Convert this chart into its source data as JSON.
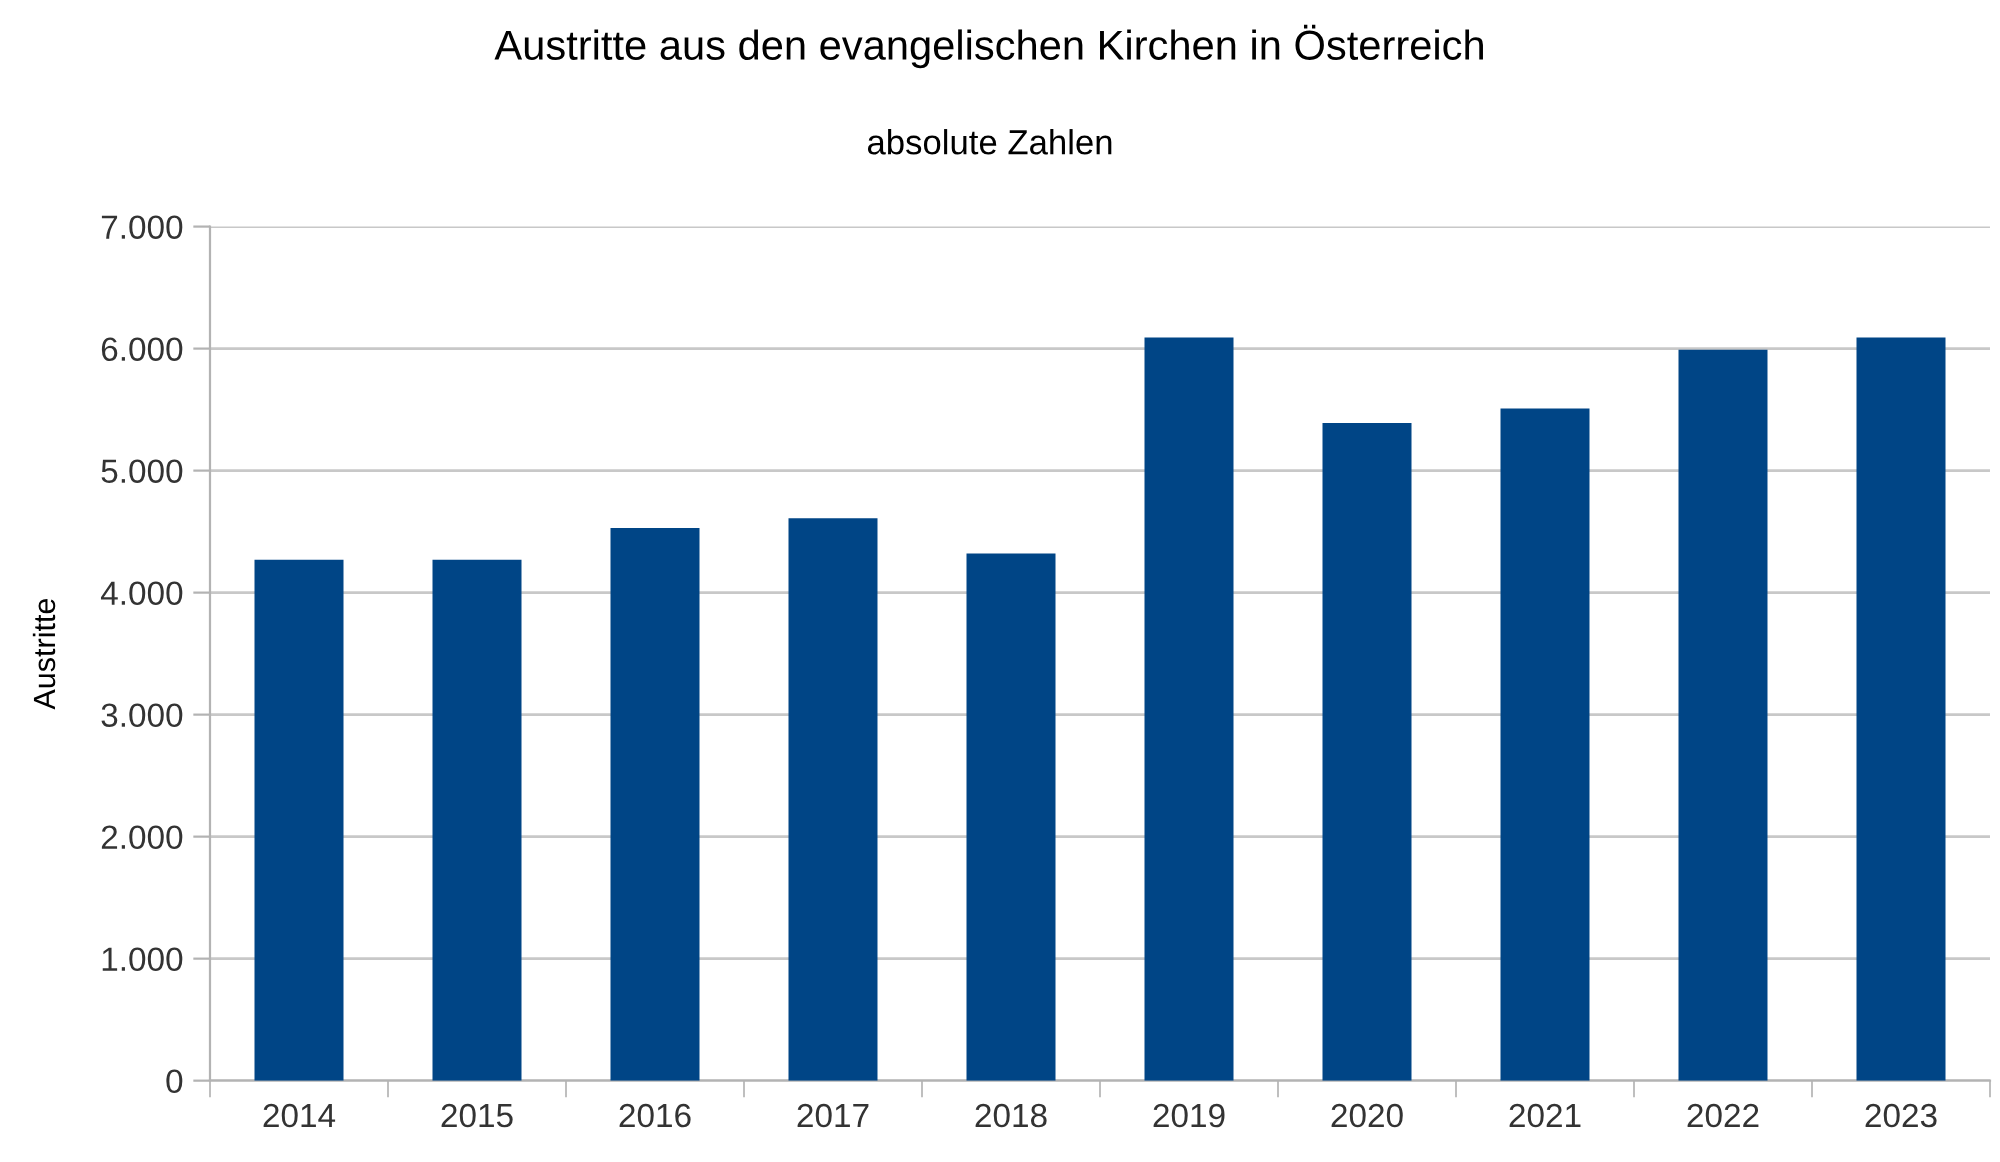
{
  "chart_data": {
    "type": "bar",
    "title": "Austritte aus den evangelischen Kirchen in Österreich",
    "subtitle": "absolute Zahlen",
    "ylabel": "Austritte",
    "categories": [
      "2014",
      "2015",
      "2016",
      "2017",
      "2018",
      "2019",
      "2020",
      "2021",
      "2022",
      "2023"
    ],
    "values": [
      4270,
      4270,
      4530,
      4610,
      4320,
      6090,
      5390,
      5510,
      5990,
      6090
    ],
    "color": "#004586",
    "ylim": [
      0,
      7000
    ],
    "yticks": [
      0,
      {
        "value": 1000,
        "label": "1.000"
      },
      {
        "value": 2000,
        "label": "2.000"
      },
      {
        "value": 3000,
        "label": "3.000"
      },
      {
        "value": 4000,
        "label": "4.000"
      },
      {
        "value": 5000,
        "label": "5.000"
      },
      {
        "value": 6000,
        "label": "6.000"
      },
      {
        "value": 7000,
        "label": "7.000"
      }
    ],
    "grid": "y"
  }
}
